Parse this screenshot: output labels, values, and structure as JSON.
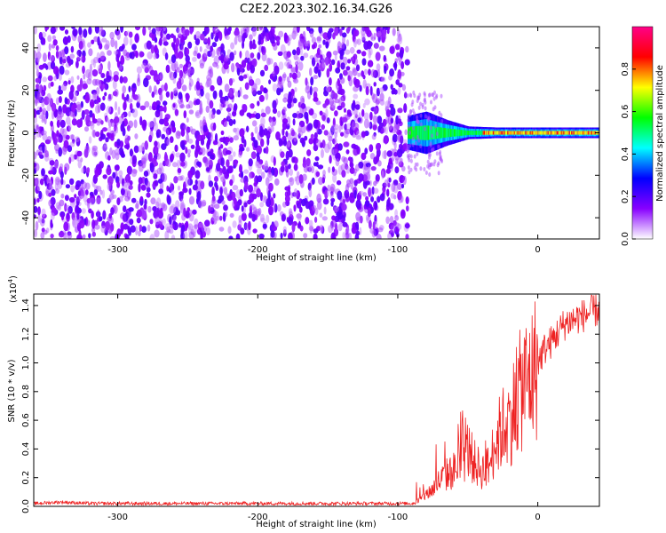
{
  "title": "C2E2.2023.302.16.34.G26",
  "chart_data": [
    {
      "type": "heatmap",
      "title": "C2E2.2023.302.16.34.G26",
      "xlabel": "Height of straight line (km)",
      "ylabel": "Frequency (Hz)",
      "xlim": [
        -360,
        44
      ],
      "ylim": [
        -50,
        50
      ],
      "x_ticks": [
        -300,
        -200,
        -100,
        0
      ],
      "y_ticks": [
        -40,
        -20,
        0,
        20,
        40
      ],
      "x_tick_labels": [
        "-300",
        "-200",
        "-100",
        "0"
      ],
      "y_tick_labels": [
        "-40",
        "-20",
        "0",
        "20",
        "40"
      ],
      "noise_region_x": [
        -360,
        -93
      ],
      "signal_center_frequency_hz": 0,
      "signal_onset_x": -93,
      "signal_half_width_hz": [
        [
          -93,
          8
        ],
        [
          -80,
          10
        ],
        [
          -65,
          6
        ],
        [
          -50,
          3
        ],
        [
          -30,
          2.5
        ],
        [
          0,
          2.5
        ],
        [
          40,
          2.5
        ]
      ],
      "colorbar": {
        "label": "Normalized spectral amplitude",
        "range": [
          0,
          1
        ],
        "ticks": [
          0,
          0.2,
          0.4,
          0.6,
          0.8
        ],
        "tick_labels": [
          "0.0",
          "0.2",
          "0.4",
          "0.6",
          "0.8"
        ],
        "colors": [
          "#ffffff",
          "#8800ff",
          "#0000ff",
          "#00ffff",
          "#00ff00",
          "#ffff00",
          "#ff0000",
          "#ff0088"
        ]
      },
      "grid": false
    },
    {
      "type": "line",
      "xlabel": "Height of straight line (km)",
      "ylabel": "SNR (10 * v/v)",
      "exponent_label": "(x10",
      "exponent_power": "4",
      "exponent_close": ")",
      "y_units_scale": 10000,
      "xlim": [
        -360,
        44
      ],
      "ylim": [
        0,
        1.48
      ],
      "x_ticks": [
        -300,
        -200,
        -100,
        0
      ],
      "y_ticks": [
        0.0,
        0.2,
        0.4,
        0.6,
        0.8,
        1.0,
        1.2,
        1.4
      ],
      "x_tick_labels": [
        "-300",
        "-200",
        "-100",
        "0"
      ],
      "y_tick_labels": [
        "0.0",
        "0.2",
        "0.4",
        "0.6",
        "0.8",
        "1.0",
        "1.2",
        "1.4"
      ],
      "line_color": "#ee2222",
      "series": [
        {
          "x": [
            -360,
            -340,
            -320,
            -300,
            -280,
            -260,
            -240,
            -220,
            -200,
            -180,
            -160,
            -140,
            -120,
            -100,
            -90,
            -85,
            -80,
            -75,
            -70,
            -65,
            -60,
            -55,
            -50,
            -45,
            -40,
            -35,
            -30,
            -25,
            -20,
            -15,
            -10,
            -5,
            0,
            5,
            10,
            15,
            20,
            25,
            30,
            35,
            40,
            44
          ],
          "y": [
            0.02,
            0.03,
            0.02,
            0.02,
            0.02,
            0.02,
            0.02,
            0.02,
            0.02,
            0.02,
            0.02,
            0.02,
            0.02,
            0.02,
            0.02,
            0.04,
            0.08,
            0.12,
            0.18,
            0.22,
            0.25,
            0.3,
            0.4,
            0.3,
            0.25,
            0.28,
            0.45,
            0.55,
            0.6,
            0.75,
            0.85,
            0.9,
            1.0,
            1.1,
            1.15,
            1.22,
            1.28,
            1.3,
            1.32,
            1.34,
            1.36,
            1.37
          ]
        }
      ],
      "grid": false
    }
  ]
}
